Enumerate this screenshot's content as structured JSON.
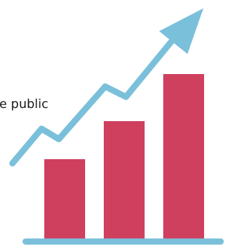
{
  "caption": "e public",
  "colors": {
    "background": "#ffffff",
    "bar": "#cf3f5e",
    "arrow": "#7ac0da",
    "baseline": "#7ac0da",
    "text": "#1c1c1c"
  },
  "icons": {
    "trend": "growth-arrow-icon",
    "bars": "bar-chart-icon"
  }
}
